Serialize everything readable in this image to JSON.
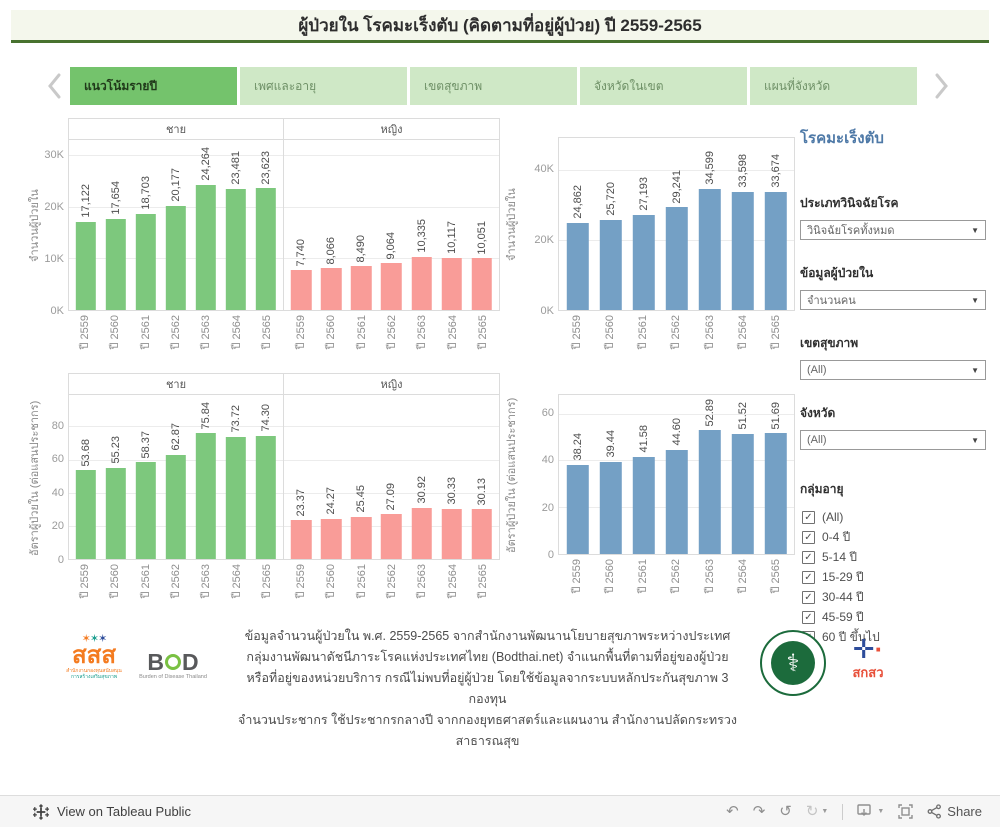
{
  "title": "ผู้ป่วยใน โรคมะเร็งตับ (คิดตามที่อยู่ผู้ป่วย) ปี 2559-2565",
  "tabs": [
    {
      "label": "แนวโน้มรายปี",
      "active": true
    },
    {
      "label": "เพศและอายุ",
      "active": false
    },
    {
      "label": "เขตสุขภาพ",
      "active": false
    },
    {
      "label": "จังหวัดในเขต",
      "active": false
    },
    {
      "label": "แผนที่จังหวัด",
      "active": false
    }
  ],
  "colors": {
    "male": "#7dc87d",
    "female": "#f99c98",
    "total": "#74a0c5",
    "tab_active": "#74c36c",
    "tab_inactive": "#cfe8c6",
    "title_bar_bg": "#f4f7ec",
    "title_bar_border": "#48722f",
    "sidebar_title": "#4e79a7"
  },
  "chart_data": [
    {
      "type": "bar",
      "ylabel": "จำนวนผู้ป่วยใน",
      "ylim": [
        0,
        33000
      ],
      "yticks": [
        {
          "v": 0,
          "t": "0K"
        },
        {
          "v": 10000,
          "t": "10K"
        },
        {
          "v": 20000,
          "t": "20K"
        },
        {
          "v": 30000,
          "t": "30K"
        }
      ],
      "categories": [
        "ปี 2559",
        "ปี 2560",
        "ปี 2561",
        "ปี 2562",
        "ปี 2563",
        "ปี 2564",
        "ปี 2565"
      ],
      "grid": true,
      "series": [
        {
          "name": "ชาย",
          "color_key": "male",
          "values": [
            17122,
            17654,
            18703,
            20177,
            24264,
            23481,
            23623
          ],
          "labels": [
            "17,122",
            "17,654",
            "18,703",
            "20,177",
            "24,264",
            "23,481",
            "23,623"
          ]
        },
        {
          "name": "หญิง",
          "color_key": "female",
          "values": [
            7740,
            8066,
            8490,
            9064,
            10335,
            10117,
            10051
          ],
          "labels": [
            "7,740",
            "8,066",
            "8,490",
            "9,064",
            "10,335",
            "10,117",
            "10,051"
          ]
        }
      ]
    },
    {
      "type": "bar",
      "ylabel": "อัตราผู้ป่วยใน (ต่อแสนประชากร)",
      "ylim": [
        0,
        99
      ],
      "yticks": [
        {
          "v": 0,
          "t": "0"
        },
        {
          "v": 20,
          "t": "20"
        },
        {
          "v": 40,
          "t": "40"
        },
        {
          "v": 60,
          "t": "60"
        },
        {
          "v": 80,
          "t": "80"
        }
      ],
      "categories": [
        "ปี 2559",
        "ปี 2560",
        "ปี 2561",
        "ปี 2562",
        "ปี 2563",
        "ปี 2564",
        "ปี 2565"
      ],
      "grid": true,
      "series": [
        {
          "name": "ชาย",
          "color_key": "male",
          "values": [
            53.68,
            55.23,
            58.37,
            62.87,
            75.84,
            73.72,
            74.3
          ],
          "labels": [
            "53.68",
            "55.23",
            "58.37",
            "62.87",
            "75.84",
            "73.72",
            "74.30"
          ]
        },
        {
          "name": "หญิง",
          "color_key": "female",
          "values": [
            23.37,
            24.27,
            25.45,
            27.09,
            30.92,
            30.33,
            30.13
          ],
          "labels": [
            "23.37",
            "24.27",
            "25.45",
            "27.09",
            "30.92",
            "30.33",
            "30.13"
          ]
        }
      ]
    },
    {
      "type": "bar",
      "ylabel": "จำนวนผู้ป่วยใน",
      "ylim": [
        0,
        49000
      ],
      "yticks": [
        {
          "v": 0,
          "t": "0K"
        },
        {
          "v": 20000,
          "t": "20K"
        },
        {
          "v": 40000,
          "t": "40K"
        }
      ],
      "categories": [
        "ปี 2559",
        "ปี 2560",
        "ปี 2561",
        "ปี 2562",
        "ปี 2563",
        "ปี 2564",
        "ปี 2565"
      ],
      "grid": true,
      "series": [
        {
          "name": "",
          "color_key": "total",
          "values": [
            24862,
            25720,
            27193,
            29241,
            34599,
            33598,
            33674
          ],
          "labels": [
            "24,862",
            "25,720",
            "27,193",
            "29,241",
            "34,599",
            "33,598",
            "33,674"
          ]
        }
      ]
    },
    {
      "type": "bar",
      "ylabel": "อัตราผู้ป่วยใน (ต่อแสนประชากร)",
      "ylim": [
        0,
        68
      ],
      "yticks": [
        {
          "v": 0,
          "t": "0"
        },
        {
          "v": 20,
          "t": "20"
        },
        {
          "v": 40,
          "t": "40"
        },
        {
          "v": 60,
          "t": "60"
        }
      ],
      "categories": [
        "ปี 2559",
        "ปี 2560",
        "ปี 2561",
        "ปี 2562",
        "ปี 2563",
        "ปี 2564",
        "ปี 2565"
      ],
      "grid": true,
      "series": [
        {
          "name": "",
          "color_key": "total",
          "values": [
            38.24,
            39.44,
            41.58,
            44.6,
            52.89,
            51.52,
            51.69
          ],
          "labels": [
            "38.24",
            "39.44",
            "41.58",
            "44.60",
            "52.89",
            "51.52",
            "51.69"
          ]
        }
      ]
    }
  ],
  "sidebar": {
    "title": "โรคมะเร็งตับ",
    "filters": [
      {
        "label": "ประเภทวินิจฉัยโรค",
        "value": "วินิจฉัยโรคทั้งหมด"
      },
      {
        "label": "ข้อมูลผู้ป่วยใน",
        "value": "จำนวนคน"
      },
      {
        "label": "เขตสุขภาพ",
        "value": "(All)"
      },
      {
        "label": "จังหวัด",
        "value": "(All)"
      }
    ],
    "age_group": {
      "label": "กลุ่มอายุ",
      "options": [
        {
          "label": "(All)",
          "checked": true
        },
        {
          "label": "0-4 ปี",
          "checked": true
        },
        {
          "label": "5-14 ปี",
          "checked": true
        },
        {
          "label": "15-29 ปี",
          "checked": true
        },
        {
          "label": "30-44 ปี",
          "checked": true
        },
        {
          "label": "45-59 ปี",
          "checked": true
        },
        {
          "label": "60 ปี ขึ้นไป",
          "checked": true
        }
      ]
    }
  },
  "footer": {
    "lines": [
      "ข้อมูลจำนวนผู้ป่วยใน พ.ศ. 2559-2565 จากสำนักงานพัฒนานโยบายสุขภาพระหว่างประเทศ",
      "กลุ่มงานพัฒนาดัชนีภาระโรคแห่งประเทศไทย (Bodthai.net) จำแนกพื้นที่ตามที่อยู่ของผู้ป่วย",
      "หรือที่อยู่ของหน่วยบริการ กรณีไม่พบที่อยู่ผู้ป่วย โดยใช้ข้อมูลจากระบบหลักประกันสุขภาพ 3 กองทุน",
      "จำนวนประชากร ใช้ประชากรกลางปี จากกองยุทธศาสตร์และแผนงาน สำนักงานปลัดกระทรวงสาธารณสุข"
    ],
    "logos": {
      "sss": {
        "stars": "✶✶✶",
        "text": "สสส",
        "sub1": "สำนักงานกองทุนสนับสนุน",
        "sub2": "การสร้างเสริมสุขภาพ"
      },
      "bod": {
        "b": "B",
        "d": "D",
        "sub": "Burden of Disease Thailand"
      },
      "moph": {
        "glyph": "⚕"
      },
      "tsri": {
        "mark": "✛",
        "text": "สกสว"
      }
    }
  },
  "toolbar": {
    "view_label": "View on Tableau Public",
    "share_label": "Share",
    "undo_icon": "↶",
    "redo_icon": "↷",
    "revert_icon": "↺",
    "refresh_icon": "↻",
    "caret": "▼"
  }
}
